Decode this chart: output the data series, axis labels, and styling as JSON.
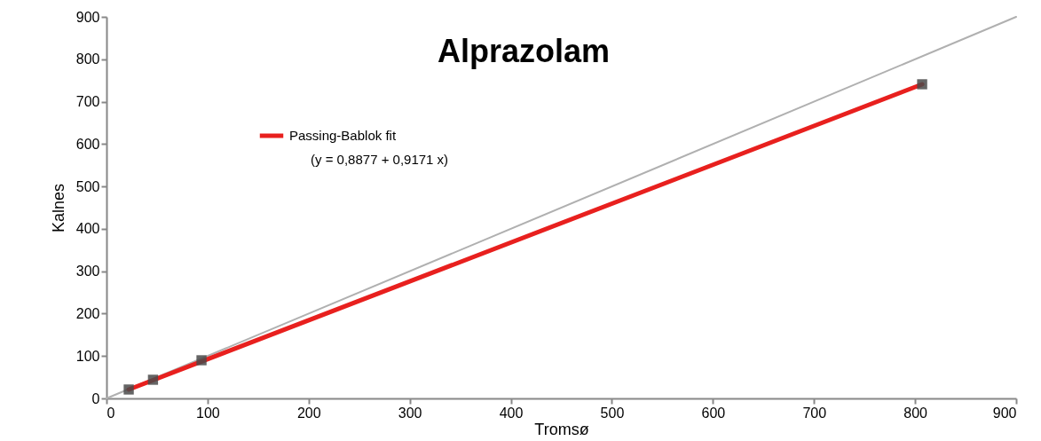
{
  "chart_data": {
    "type": "scatter",
    "title": "Alprazolam",
    "xlabel": "Tromsø",
    "ylabel": "Kalnes",
    "xlim": [
      0,
      900
    ],
    "xticks": [
      0,
      100,
      200,
      300,
      400,
      500,
      600,
      700,
      800,
      900
    ],
    "ylim": [
      0,
      900
    ],
    "yticks": [
      0,
      100,
      200,
      300,
      400,
      500,
      600,
      700,
      800,
      900
    ],
    "grid": false,
    "legend": "top left",
    "annotations": [
      "(y = 0,8877 + 0,9171 x)"
    ],
    "series": [
      {
        "type": "line",
        "marker": "none",
        "color": "#b0b0b0",
        "x": [
          0,
          900
        ],
        "values": [
          0,
          900
        ]
      },
      {
        "type": "line",
        "marker": "none",
        "name": "Passing-Bablok fit",
        "color": "#e8201e",
        "x": [
          22,
          807
        ],
        "values": [
          21,
          741
        ]
      },
      {
        "marker": "square",
        "color": "#4a4a4a",
        "x": [
          22,
          46,
          94,
          807
        ],
        "values": [
          21,
          44,
          90,
          741
        ]
      }
    ]
  }
}
